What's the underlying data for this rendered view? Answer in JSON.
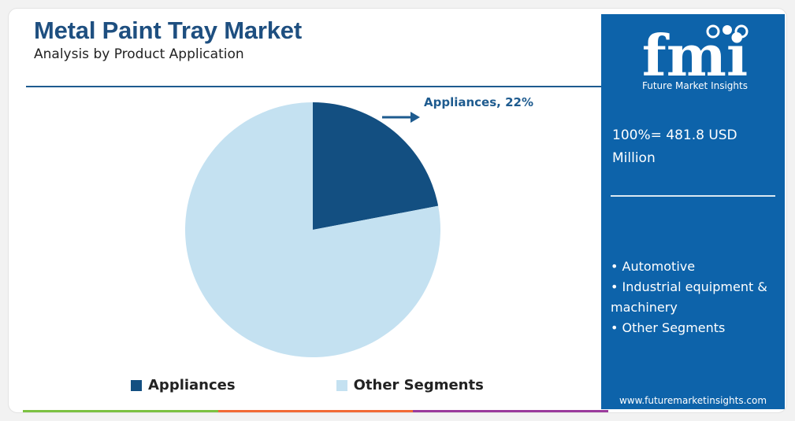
{
  "header": {
    "title": "Metal Paint Tray Market",
    "subtitle": "Analysis by Product Application"
  },
  "chart_data": {
    "type": "pie",
    "categories": [
      "Appliances",
      "Other Segments"
    ],
    "values": [
      22,
      78
    ],
    "colors": [
      "#134f81",
      "#c4e1f1"
    ],
    "annotations": [
      {
        "category": "Appliances",
        "text": "Appliances, 22%"
      }
    ],
    "legend_position": "bottom"
  },
  "legend": {
    "items": [
      {
        "label": "Appliances",
        "color": "#134f81"
      },
      {
        "label": "Other Segments",
        "color": "#c4e1f1"
      }
    ]
  },
  "side_panel": {
    "brand_letters": "fmi",
    "brand_name": "Future Market Insights",
    "total_line1": "100%= 481.8 USD",
    "total_line2": "Million",
    "segments": [
      "Automotive",
      "Industrial equipment & machinery",
      "Other Segments"
    ],
    "website": "www.futuremarketinsights.com",
    "background_color": "#0d63aa"
  },
  "bottom_bar_colors": [
    "#7cc242",
    "#f26b37",
    "#9a3b9c"
  ]
}
